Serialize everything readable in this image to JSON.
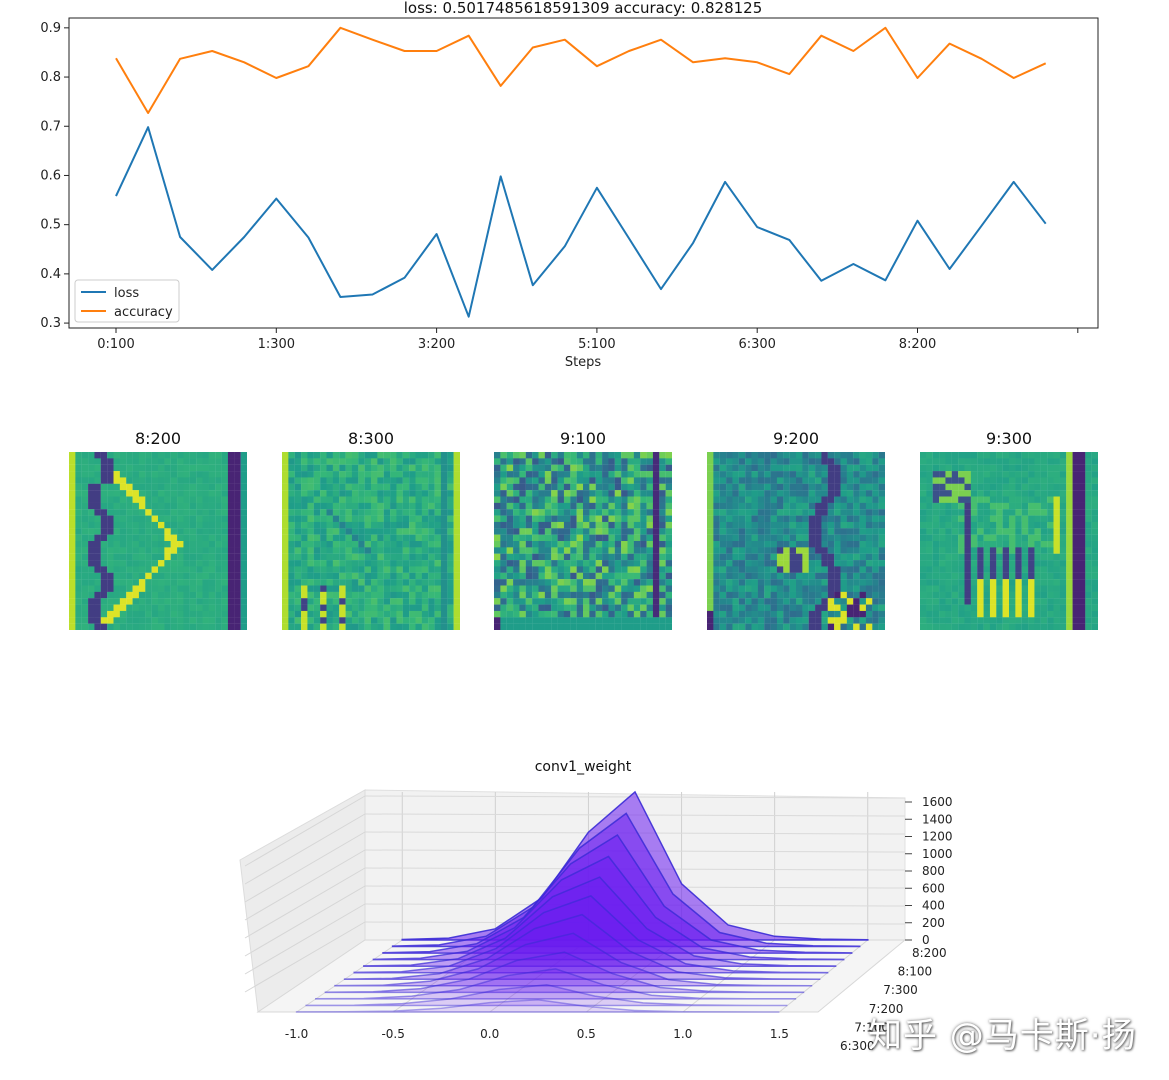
{
  "chart_data": [
    {
      "type": "line",
      "title": "loss: 0.5017485618591309   accuracy: 0.828125",
      "xlabel": "Steps",
      "ylabel": "",
      "ylim": [
        0.29,
        0.92
      ],
      "y_ticks": [
        "0.3",
        "0.4",
        "0.5",
        "0.6",
        "0.7",
        "0.8",
        "0.9"
      ],
      "x_tick_labels": [
        "0:100",
        "1:300",
        "3:200",
        "5:100",
        "6:300",
        "8:200"
      ],
      "x_tick_positions": [
        0,
        5,
        10,
        15,
        20,
        25
      ],
      "legend_position": "lower-left",
      "grid": false,
      "series": [
        {
          "name": "loss",
          "color": "#1f77b4",
          "values": [
            0.558,
            0.698,
            0.475,
            0.408,
            0.475,
            0.553,
            0.474,
            0.353,
            0.358,
            0.392,
            0.481,
            0.313,
            0.598,
            0.377,
            0.456,
            0.575,
            0.472,
            0.369,
            0.463,
            0.587,
            0.495,
            0.469,
            0.386,
            0.42,
            0.387,
            0.508,
            0.41,
            0.498,
            0.587,
            0.502
          ]
        },
        {
          "name": "accuracy",
          "color": "#ff7f0e",
          "values": [
            0.838,
            0.727,
            0.837,
            0.853,
            0.83,
            0.798,
            0.822,
            0.9,
            0.876,
            0.853,
            0.853,
            0.884,
            0.782,
            0.86,
            0.876,
            0.822,
            0.853,
            0.876,
            0.83,
            0.838,
            0.83,
            0.806,
            0.884,
            0.853,
            0.9,
            0.798,
            0.868,
            0.837,
            0.798,
            0.828
          ]
        }
      ]
    },
    {
      "type": "heatmap",
      "title": "",
      "panels": [
        {
          "title": "8:200",
          "pattern": "chevron"
        },
        {
          "title": "8:300",
          "pattern": "sketch"
        },
        {
          "title": "9:100",
          "pattern": "noise"
        },
        {
          "title": "9:200",
          "pattern": "edges"
        },
        {
          "title": "9:300",
          "pattern": "horse"
        }
      ],
      "colormap": "viridis"
    },
    {
      "type": "area",
      "title": "conv1_weight",
      "x_ticks": [
        "-1.0",
        "-0.5",
        "0.0",
        "0.5",
        "1.0",
        "1.5"
      ],
      "z_ticks": [
        "0",
        "200",
        "400",
        "600",
        "800",
        "1000",
        "1200",
        "1400",
        "1600"
      ],
      "step_ticks": [
        "8:200",
        "8:100",
        "7:300",
        "7:200",
        "7:100",
        "6:300"
      ],
      "color": "#6a1bf0",
      "x": [
        -1.0,
        -0.75,
        -0.5,
        -0.25,
        0.0,
        0.25,
        0.5,
        0.75,
        1.0,
        1.25,
        1.5
      ],
      "series": [
        {
          "values": [
            5,
            20,
            120,
            450,
            1150,
            1580,
            600,
            160,
            40,
            10,
            3
          ]
        },
        {
          "values": [
            5,
            18,
            110,
            420,
            1050,
            1420,
            560,
            150,
            36,
            9,
            3
          ]
        },
        {
          "values": [
            4,
            16,
            100,
            380,
            950,
            1260,
            500,
            140,
            32,
            8,
            2
          ]
        },
        {
          "values": [
            4,
            14,
            90,
            340,
            850,
            1100,
            450,
            125,
            28,
            7,
            2
          ]
        },
        {
          "values": [
            3,
            12,
            80,
            300,
            740,
            950,
            400,
            110,
            24,
            6,
            2
          ]
        },
        {
          "values": [
            3,
            10,
            70,
            260,
            640,
            820,
            350,
            95,
            20,
            5,
            1
          ]
        },
        {
          "values": [
            2,
            9,
            60,
            220,
            540,
            690,
            300,
            80,
            17,
            4,
            1
          ]
        },
        {
          "values": [
            2,
            7,
            50,
            180,
            440,
            560,
            250,
            66,
            14,
            3,
            1
          ]
        },
        {
          "values": [
            2,
            6,
            40,
            140,
            340,
            430,
            200,
            52,
            11,
            3,
            1
          ]
        },
        {
          "values": [
            1,
            4,
            30,
            100,
            250,
            320,
            150,
            40,
            8,
            2,
            1
          ]
        },
        {
          "values": [
            1,
            3,
            20,
            70,
            170,
            220,
            100,
            27,
            6,
            1,
            0
          ]
        },
        {
          "values": [
            1,
            2,
            10,
            40,
            100,
            130,
            60,
            16,
            3,
            1,
            0
          ]
        }
      ]
    }
  ],
  "watermark": "知乎 @马卡斯·扬"
}
